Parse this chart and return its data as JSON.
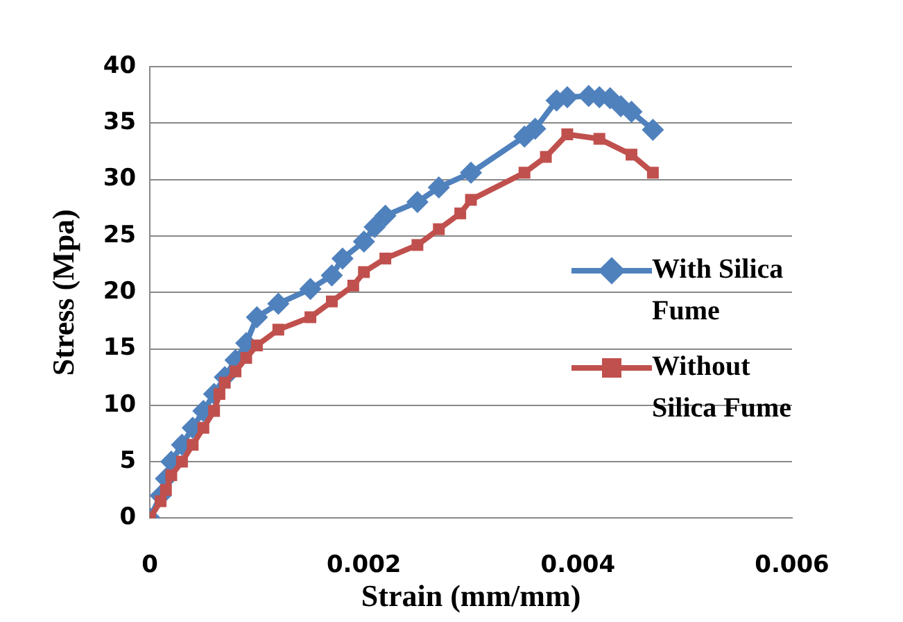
{
  "chart_data": {
    "type": "line",
    "xlabel": "Strain (mm/mm)",
    "ylabel": "Stress (Mpa)",
    "xlim": [
      0,
      0.006
    ],
    "xticks": [
      0,
      0.002,
      0.004,
      0.006
    ],
    "ylim": [
      0,
      40
    ],
    "yticks": [
      0,
      5,
      10,
      15,
      20,
      25,
      30,
      35,
      40
    ],
    "grid": "y",
    "legend": "right",
    "series": [
      {
        "name": "With Silica Fume",
        "color": "#4f81bd",
        "marker": "diamond",
        "x": [
          0,
          0.0001,
          0.00015,
          0.0002,
          0.0003,
          0.0004,
          0.0005,
          0.0006,
          0.0007,
          0.0008,
          0.0009,
          0.001,
          0.0012,
          0.0015,
          0.0017,
          0.0018,
          0.002,
          0.0021,
          0.0022,
          0.0025,
          0.0027,
          0.003,
          0.0035,
          0.0036,
          0.0038,
          0.0039,
          0.0041,
          0.0042,
          0.0043,
          0.0044,
          0.0045,
          0.0047
        ],
        "values": [
          0,
          2,
          3.5,
          5,
          6.5,
          8,
          9.5,
          11,
          12.5,
          14,
          15.5,
          17.8,
          19,
          20.3,
          21.5,
          23,
          24.5,
          25.8,
          26.8,
          28,
          29.3,
          30.6,
          33.8,
          34.5,
          37,
          37.3,
          37.4,
          37.3,
          37.2,
          36.5,
          36,
          34.4
        ]
      },
      {
        "name": "Without Silica Fume",
        "color": "#c0504d",
        "marker": "square",
        "x": [
          0,
          0.0001,
          0.00015,
          0.0002,
          0.0003,
          0.0004,
          0.0005,
          0.0006,
          0.00065,
          0.0007,
          0.0008,
          0.0009,
          0.001,
          0.0012,
          0.0015,
          0.0017,
          0.0019,
          0.002,
          0.0022,
          0.0025,
          0.0027,
          0.0029,
          0.003,
          0.0035,
          0.0037,
          0.0039,
          0.0042,
          0.0045,
          0.0047
        ],
        "values": [
          0,
          1.5,
          2.5,
          3.8,
          5,
          6.5,
          8,
          9.5,
          11,
          12,
          13,
          14.2,
          15.3,
          16.7,
          17.8,
          19.2,
          20.6,
          21.8,
          23,
          24.2,
          25.6,
          27,
          28.2,
          30.6,
          32,
          34,
          33.6,
          32.2,
          30.6
        ]
      }
    ]
  }
}
